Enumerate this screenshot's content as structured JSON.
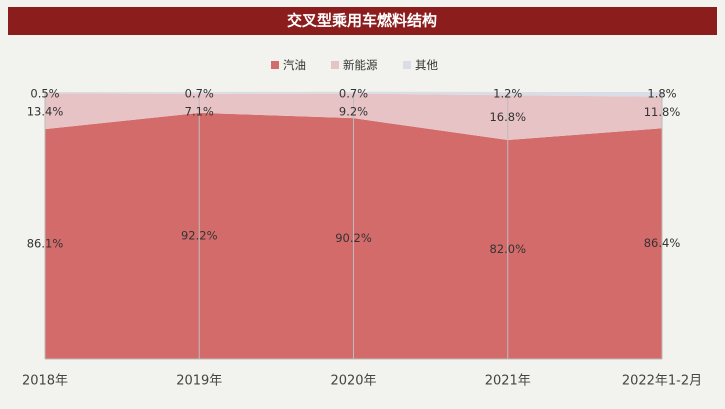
{
  "chart_data": {
    "type": "stacked-area",
    "title": "交叉型乘用车燃料结构",
    "categories": [
      "2018年",
      "2019年",
      "2020年",
      "2021年",
      "2022年1-2月"
    ],
    "ylim": [
      0,
      100
    ],
    "legend": "top",
    "series": [
      {
        "name": "汽油",
        "color": "#d46b6b",
        "values": [
          86.1,
          92.2,
          90.2,
          82.0,
          86.4
        ],
        "value_labels": [
          "86.1%",
          "92.2%",
          "90.2%",
          "82.0%",
          "86.4%"
        ]
      },
      {
        "name": "新能源",
        "color": "#e8c3c5",
        "values": [
          13.4,
          7.1,
          9.2,
          16.8,
          11.8
        ],
        "value_labels": [
          "13.4%",
          "7.1%",
          "9.2%",
          "16.8%",
          "11.8%"
        ]
      },
      {
        "name": "其他",
        "color": "#dadde5",
        "values": [
          0.5,
          0.7,
          0.7,
          1.2,
          1.8
        ],
        "value_labels": [
          "0.5%",
          "0.7%",
          "0.7%",
          "1.2%",
          "1.8%"
        ]
      }
    ]
  }
}
